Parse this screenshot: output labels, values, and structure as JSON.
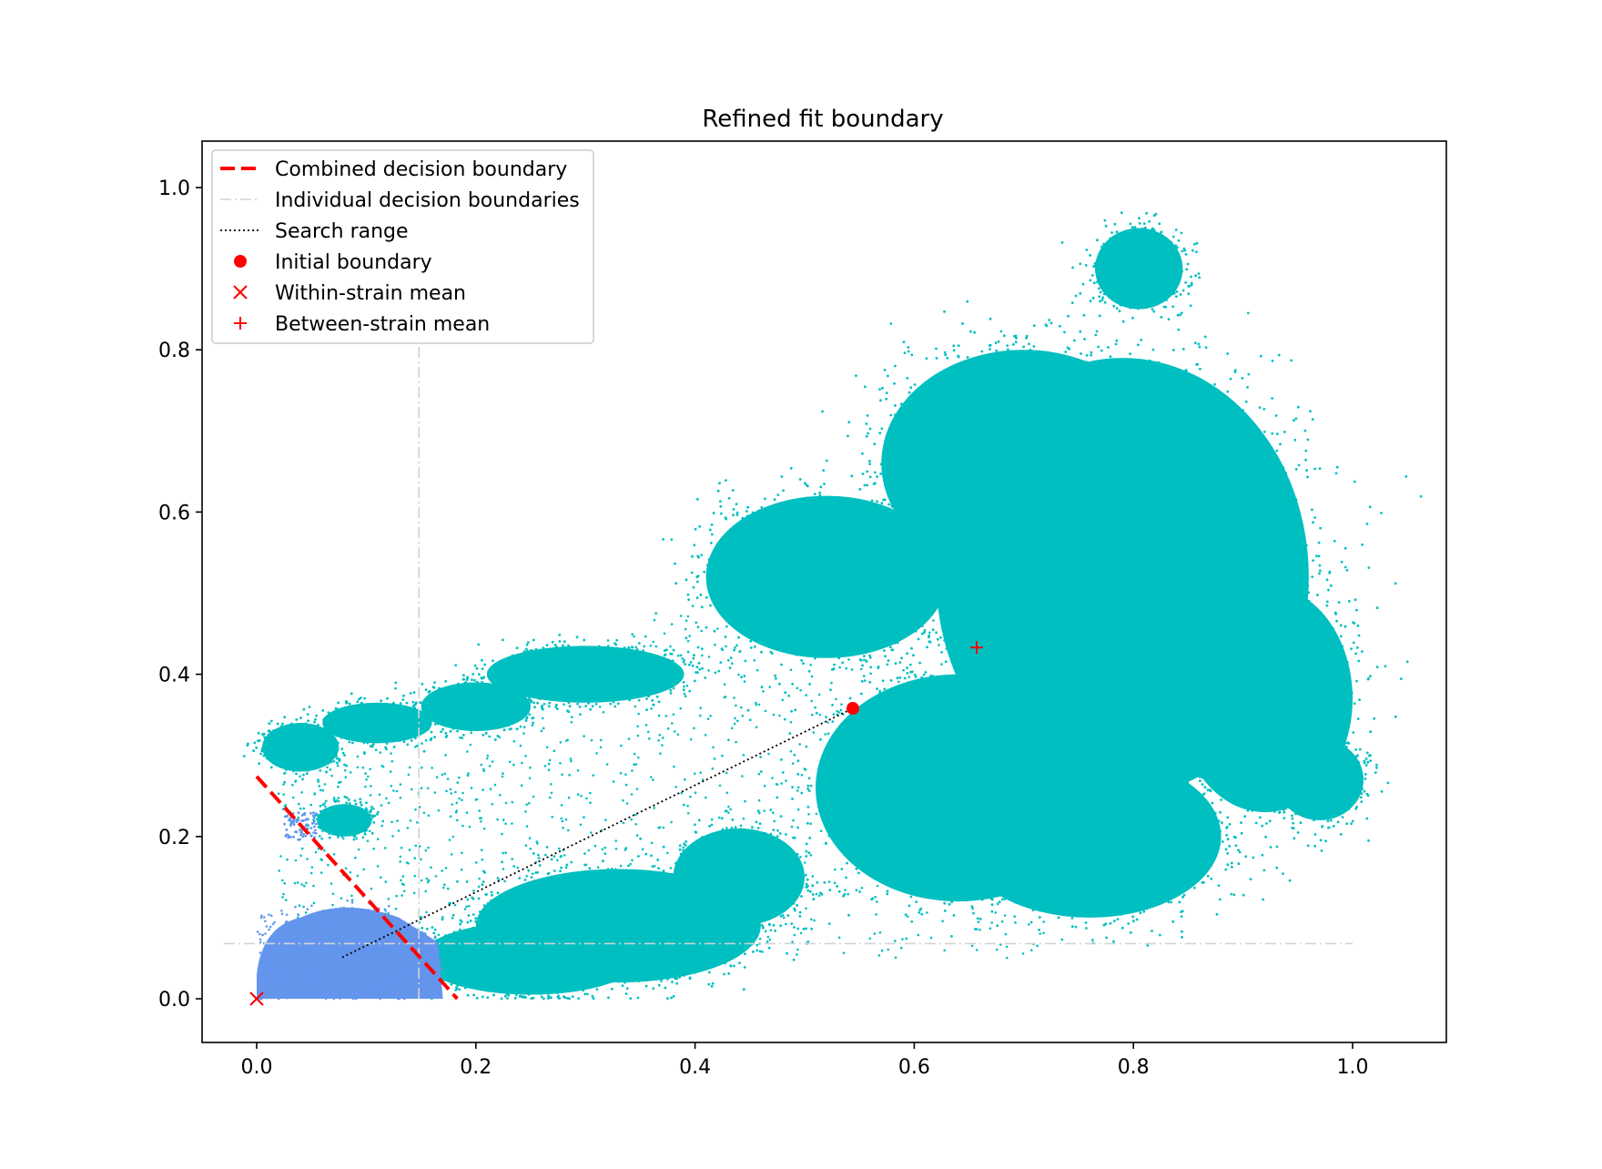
{
  "chart_data": {
    "type": "scatter",
    "title": "Refined fit boundary",
    "xlabel": "",
    "ylabel": "",
    "xlim": [
      -0.05,
      1.085
    ],
    "ylim": [
      -0.05,
      1.06
    ],
    "xticks": [
      0.0,
      0.2,
      0.4,
      0.6,
      0.8,
      1.0
    ],
    "yticks": [
      0.0,
      0.2,
      0.4,
      0.6,
      0.8,
      1.0
    ],
    "xtick_labels": [
      "0.0",
      "0.2",
      "0.4",
      "0.6",
      "0.8",
      "1.0"
    ],
    "ytick_labels": [
      "0.0",
      "0.2",
      "0.4",
      "0.6",
      "0.8",
      "1.0"
    ],
    "grid": false,
    "legend_position": "top-left",
    "colors": {
      "within_cluster": "#6495ed",
      "between_cluster": "#00bfc0",
      "combined_boundary": "#ff0000",
      "individual_boundaries": "#d3d3d3",
      "search_range": "#000000",
      "markers": "#ff0000"
    },
    "legend": [
      {
        "label": "Combined decision boundary",
        "style": "dashed-line"
      },
      {
        "label": "Individual decision boundaries",
        "style": "dashdot-line"
      },
      {
        "label": "Search range",
        "style": "dotted-line"
      },
      {
        "label": "Initial boundary",
        "style": "circle-marker"
      },
      {
        "label": "Within-strain mean",
        "style": "x-marker"
      },
      {
        "label": "Between-strain mean",
        "style": "plus-marker"
      }
    ],
    "combined_decision_boundary": {
      "x": [
        0.0,
        0.183
      ],
      "y": [
        0.274,
        0.0
      ]
    },
    "individual_decision_boundaries": {
      "vertical": {
        "x": 0.148,
        "y": [
          0.0,
          0.82
        ]
      },
      "horizontal": {
        "y": 0.068,
        "x": [
          -0.03,
          1.0
        ]
      }
    },
    "search_range": {
      "x": [
        0.078,
        0.544
      ],
      "y": [
        0.051,
        0.358
      ]
    },
    "initial_boundary": {
      "x": 0.544,
      "y": 0.358
    },
    "within_strain_mean": {
      "x": 0.0,
      "y": 0.0
    },
    "between_strain_mean": {
      "x": 0.657,
      "y": 0.433
    },
    "series": [
      {
        "cluster": "within",
        "approx_region": [
          {
            "x": [
              0.0,
              0.17
            ],
            "y": [
              0.0,
              0.12
            ]
          },
          {
            "x": [
              0.02,
              0.05
            ],
            "y": [
              0.19,
              0.23
            ]
          }
        ]
      },
      {
        "cluster": "between",
        "approx_region": [
          {
            "x": [
              0.58,
              1.0
            ],
            "y": [
              0.1,
              0.82
            ]
          },
          {
            "x": [
              0.38,
              0.6
            ],
            "y": [
              0.4,
              0.76
            ]
          },
          {
            "x": [
              0.12,
              0.42
            ],
            "y": [
              0.0,
              0.22
            ]
          },
          {
            "x": [
              0.0,
              0.38
            ],
            "y": [
              0.25,
              0.45
            ]
          },
          {
            "x": [
              0.76,
              0.86
            ],
            "y": [
              0.85,
              1.0
            ]
          }
        ]
      }
    ]
  }
}
